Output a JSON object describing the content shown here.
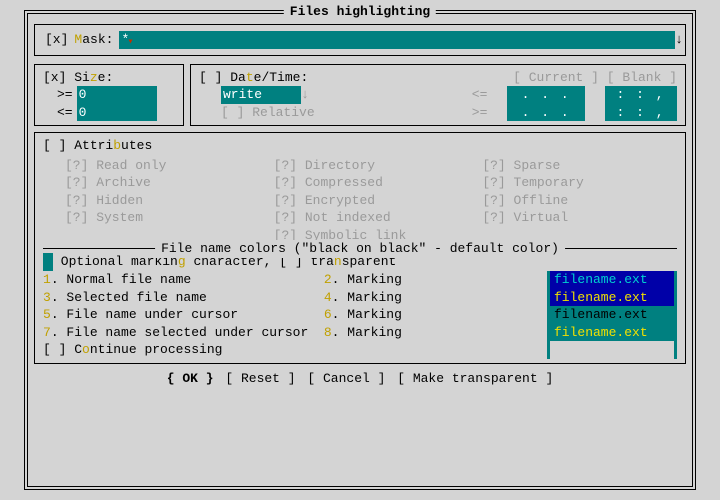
{
  "dialog": {
    "title": "Files highlighting"
  },
  "mask": {
    "checkbox": "[x]",
    "label": "Mask:",
    "hotkey": "M",
    "label_rest": "ask:",
    "value": "*"
  },
  "size": {
    "checkbox": "[x]",
    "label_pre": "Si",
    "hotkey": "z",
    "label_post": "e:",
    "ge": ">=",
    "ge_val": "0",
    "le": "<=",
    "le_val": "0"
  },
  "datetime": {
    "checkbox": "[ ]",
    "label_pre": "Da",
    "hotkey": "t",
    "label_post": "e/Time:",
    "btn_current": "[ Current ]",
    "btn_blank": "[ Blank ]",
    "type": "write",
    "relative_checkbox": "[ ]",
    "relative_label": "Relative",
    "le": "<=",
    "ge": ">=",
    "date_placeholder": ".  .  .",
    "time_placeholder": ":  :  ,"
  },
  "attributes": {
    "checkbox": "[ ]",
    "label_pre": "Attri",
    "hotkey": "b",
    "label_post": "utes",
    "items": [
      [
        "[?] Read only",
        "[?] Directory",
        "[?] Sparse"
      ],
      [
        "[?] Archive",
        "[?] Compressed",
        "[?] Temporary"
      ],
      [
        "[?] Hidden",
        "[?] Encrypted",
        "[?] Offline"
      ],
      [
        "[?] System",
        "[?] Not indexed",
        "[?] Virtual"
      ],
      [
        "",
        "[?] Symbolic link",
        ""
      ]
    ]
  },
  "colors": {
    "title": "File name colors (\"black on black\" - default color)",
    "marking_swatch_bg": "#008080",
    "marking_line_pre": " Optional markin",
    "marking_hotkey": "g",
    "marking_line_mid": " character, [ ] tra",
    "marking_hotkey2": "n",
    "marking_line_post": "sparent",
    "lines": [
      {
        "n": "1",
        "label": ". Normal file name",
        "mn": "2",
        "mlabel": ". Marking"
      },
      {
        "n": "3",
        "label": ". Selected file name",
        "mn": "4",
        "mlabel": ". Marking"
      },
      {
        "n": "5",
        "label": ". File name under cursor",
        "mn": "6",
        "mlabel": ". Marking"
      },
      {
        "n": "7",
        "label": ". File name selected under cursor",
        "mn": "8",
        "mlabel": ". Marking"
      }
    ],
    "continue_checkbox": "[ ]",
    "continue_pre": "C",
    "continue_hotkey": "o",
    "continue_post": "ntinue processing",
    "preview": [
      {
        "text": "filename.ext",
        "bg": "#0000a8",
        "fg": "#00d0d0"
      },
      {
        "text": "filename.ext",
        "bg": "#0000a8",
        "fg": "#f0e000"
      },
      {
        "text": "filename.ext",
        "bg": "#008080",
        "fg": "#000000"
      },
      {
        "text": "filename.ext",
        "bg": "#008080",
        "fg": "#f0e000"
      }
    ]
  },
  "buttons": {
    "ok": "{ OK }",
    "reset": "[ Reset ]",
    "cancel": "[ Cancel ]",
    "transparent": "[ Make transparent ]"
  },
  "style": {
    "teal": "#008080",
    "grey": "#9a9a9a"
  }
}
